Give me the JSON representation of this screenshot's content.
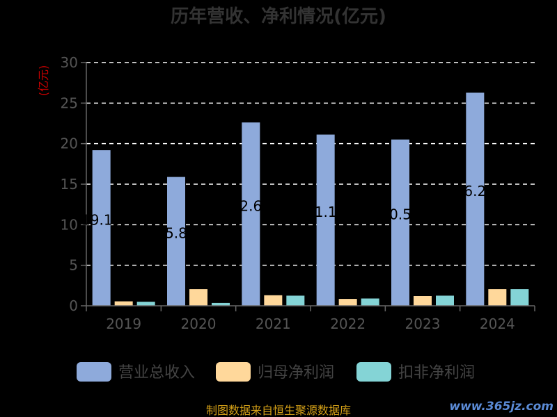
{
  "chart_data": {
    "type": "bar",
    "title": "历年营收、净利情况(亿元)",
    "ylabel": "(亿元)",
    "ylim": [
      0,
      30
    ],
    "yticks": [
      0,
      5,
      10,
      15,
      20,
      25,
      30
    ],
    "categories": [
      "2019",
      "2020",
      "2021",
      "2022",
      "2023",
      "2024"
    ],
    "series": [
      {
        "name": "营业总收入",
        "color": "#8eaadb",
        "values": [
          19.19,
          15.89,
          22.61,
          21.12,
          20.51,
          26.28
        ]
      },
      {
        "name": "归母净利润",
        "color": "#ffd89b",
        "values": [
          0.55,
          2.05,
          1.3,
          0.85,
          1.2,
          2.05
        ]
      },
      {
        "name": "扣非净利润",
        "color": "#84d4d6",
        "values": [
          0.5,
          0.35,
          1.25,
          0.9,
          1.25,
          2.05
        ]
      }
    ],
    "data_labels": [
      "19.19",
      "15.89",
      "22.61",
      "21.12",
      "20.51",
      "26.28"
    ],
    "grid": true,
    "legend": "bottom"
  },
  "footer": {
    "source": "制图数据来自恒生聚源数据库",
    "watermark": "www.365jz.com"
  },
  "colors": {
    "ylabel": "#cc0000",
    "source": "#d4a017",
    "watermark": "#5b8bd6"
  }
}
